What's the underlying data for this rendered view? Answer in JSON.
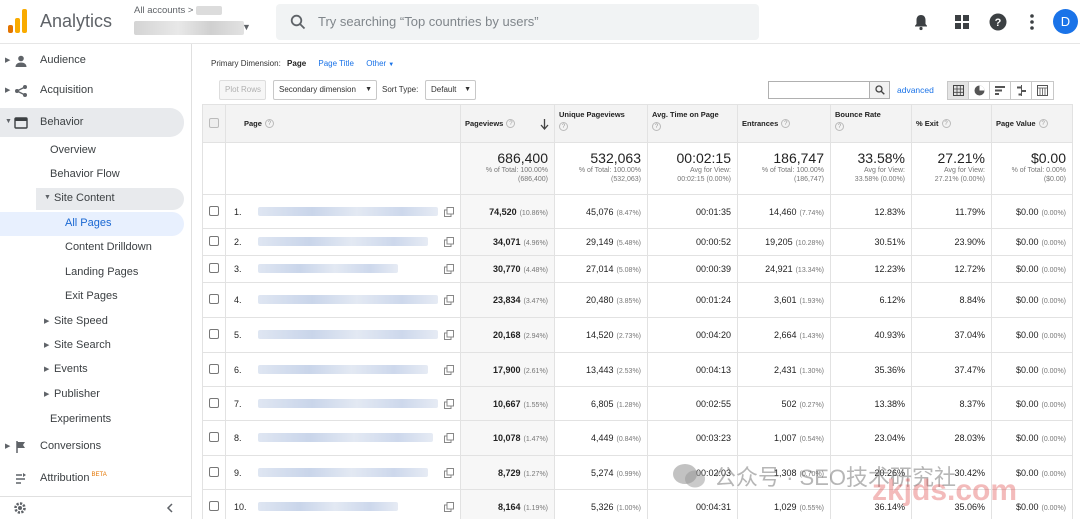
{
  "app": {
    "brand": "Analytics",
    "account_label": "All accounts >",
    "avatar_letter": "D"
  },
  "search": {
    "placeholder": "Try searching “Top countries by users”"
  },
  "colors": {
    "accent": "#1a73e8",
    "logo_orange": "#f9ab00",
    "logo_dark": "#e37400"
  },
  "sidebar": {
    "audience": "Audience",
    "acquisition": "Acquisition",
    "behavior": "Behavior",
    "overview": "Overview",
    "behavior_flow": "Behavior Flow",
    "site_content": "Site Content",
    "all_pages": "All Pages",
    "content_drilldown": "Content Drilldown",
    "landing_pages": "Landing Pages",
    "exit_pages": "Exit Pages",
    "site_speed": "Site Speed",
    "site_search": "Site Search",
    "events": "Events",
    "publisher": "Publisher",
    "experiments": "Experiments",
    "conversions": "Conversions",
    "attribution": "Attribution",
    "attribution_badge": "BETA"
  },
  "controls": {
    "primary_dimension_label": "Primary Dimension:",
    "dim_page": "Page",
    "dim_page_title": "Page Title",
    "dim_other": "Other",
    "plot_rows": "Plot Rows",
    "secondary_dimension": "Secondary dimension",
    "sort_type_label": "Sort Type:",
    "sort_type_value": "Default",
    "advanced": "advanced"
  },
  "table": {
    "headers": [
      "Page",
      "Pageviews",
      "Unique Pageviews",
      "Avg. Time on Page",
      "Entrances",
      "Bounce Rate",
      "% Exit",
      "Page Value"
    ],
    "totals": [
      {
        "big": "686,400",
        "l1": "% of Total: 100.00%",
        "l2": "(686,400)"
      },
      {
        "big": "532,063",
        "l1": "% of Total: 100.00%",
        "l2": "(532,063)"
      },
      {
        "big": "00:02:15",
        "l1": "Avg for View:",
        "l2": "00:02:15 (0.00%)"
      },
      {
        "big": "186,747",
        "l1": "% of Total: 100.00%",
        "l2": "(186,747)"
      },
      {
        "big": "33.58%",
        "l1": "Avg for View:",
        "l2": "33.58% (0.00%)"
      },
      {
        "big": "27.21%",
        "l1": "Avg for View:",
        "l2": "27.21% (0.00%)"
      },
      {
        "big": "$0.00",
        "l1": "% of Total: 0.00%",
        "l2": "($0.00)"
      }
    ],
    "rows": [
      {
        "n": "1.",
        "pv": "74,520",
        "pvp": "(10.86%)",
        "upv": "45,076",
        "upvp": "(8.47%)",
        "avg": "00:01:35",
        "ent": "14,460",
        "entp": "(7.74%)",
        "br": "12.83%",
        "ex": "11.79%",
        "val": "$0.00",
        "valp": "(0.00%)"
      },
      {
        "n": "2.",
        "pv": "34,071",
        "pvp": "(4.96%)",
        "upv": "29,149",
        "upvp": "(5.48%)",
        "avg": "00:00:52",
        "ent": "19,205",
        "entp": "(10.28%)",
        "br": "30.51%",
        "ex": "23.90%",
        "val": "$0.00",
        "valp": "(0.00%)"
      },
      {
        "n": "3.",
        "pv": "30,770",
        "pvp": "(4.48%)",
        "upv": "27,014",
        "upvp": "(5.08%)",
        "avg": "00:00:39",
        "ent": "24,921",
        "entp": "(13.34%)",
        "br": "12.23%",
        "ex": "12.72%",
        "val": "$0.00",
        "valp": "(0.00%)"
      },
      {
        "n": "4.",
        "pv": "23,834",
        "pvp": "(3.47%)",
        "upv": "20,480",
        "upvp": "(3.85%)",
        "avg": "00:01:24",
        "ent": "3,601",
        "entp": "(1.93%)",
        "br": "6.12%",
        "ex": "8.84%",
        "val": "$0.00",
        "valp": "(0.00%)"
      },
      {
        "n": "5.",
        "pv": "20,168",
        "pvp": "(2.94%)",
        "upv": "14,520",
        "upvp": "(2.73%)",
        "avg": "00:04:20",
        "ent": "2,664",
        "entp": "(1.43%)",
        "br": "40.93%",
        "ex": "37.04%",
        "val": "$0.00",
        "valp": "(0.00%)"
      },
      {
        "n": "6.",
        "pv": "17,900",
        "pvp": "(2.61%)",
        "upv": "13,443",
        "upvp": "(2.53%)",
        "avg": "00:04:13",
        "ent": "2,431",
        "entp": "(1.30%)",
        "br": "35.36%",
        "ex": "37.47%",
        "val": "$0.00",
        "valp": "(0.00%)"
      },
      {
        "n": "7.",
        "pv": "10,667",
        "pvp": "(1.55%)",
        "upv": "6,805",
        "upvp": "(1.28%)",
        "avg": "00:02:55",
        "ent": "502",
        "entp": "(0.27%)",
        "br": "13.38%",
        "ex": "8.37%",
        "val": "$0.00",
        "valp": "(0.00%)"
      },
      {
        "n": "8.",
        "pv": "10,078",
        "pvp": "(1.47%)",
        "upv": "4,449",
        "upvp": "(0.84%)",
        "avg": "00:03:23",
        "ent": "1,007",
        "entp": "(0.54%)",
        "br": "23.04%",
        "ex": "28.03%",
        "val": "$0.00",
        "valp": "(0.00%)"
      },
      {
        "n": "9.",
        "pv": "8,729",
        "pvp": "(1.27%)",
        "upv": "5,274",
        "upvp": "(0.99%)",
        "avg": "00:02:03",
        "ent": "1,308",
        "entp": "(0.70%)",
        "br": "20.26%",
        "ex": "30.42%",
        "val": "$0.00",
        "valp": "(0.00%)"
      },
      {
        "n": "10.",
        "pv": "8,164",
        "pvp": "(1.19%)",
        "upv": "5,326",
        "upvp": "(1.00%)",
        "avg": "00:04:31",
        "ent": "1,029",
        "entp": "(0.55%)",
        "br": "36.14%",
        "ex": "35.06%",
        "val": "$0.00",
        "valp": "(0.00%)"
      }
    ]
  },
  "watermark": {
    "cn": "公众号 · SEO技术研究社",
    "site": "zkjds.com"
  }
}
